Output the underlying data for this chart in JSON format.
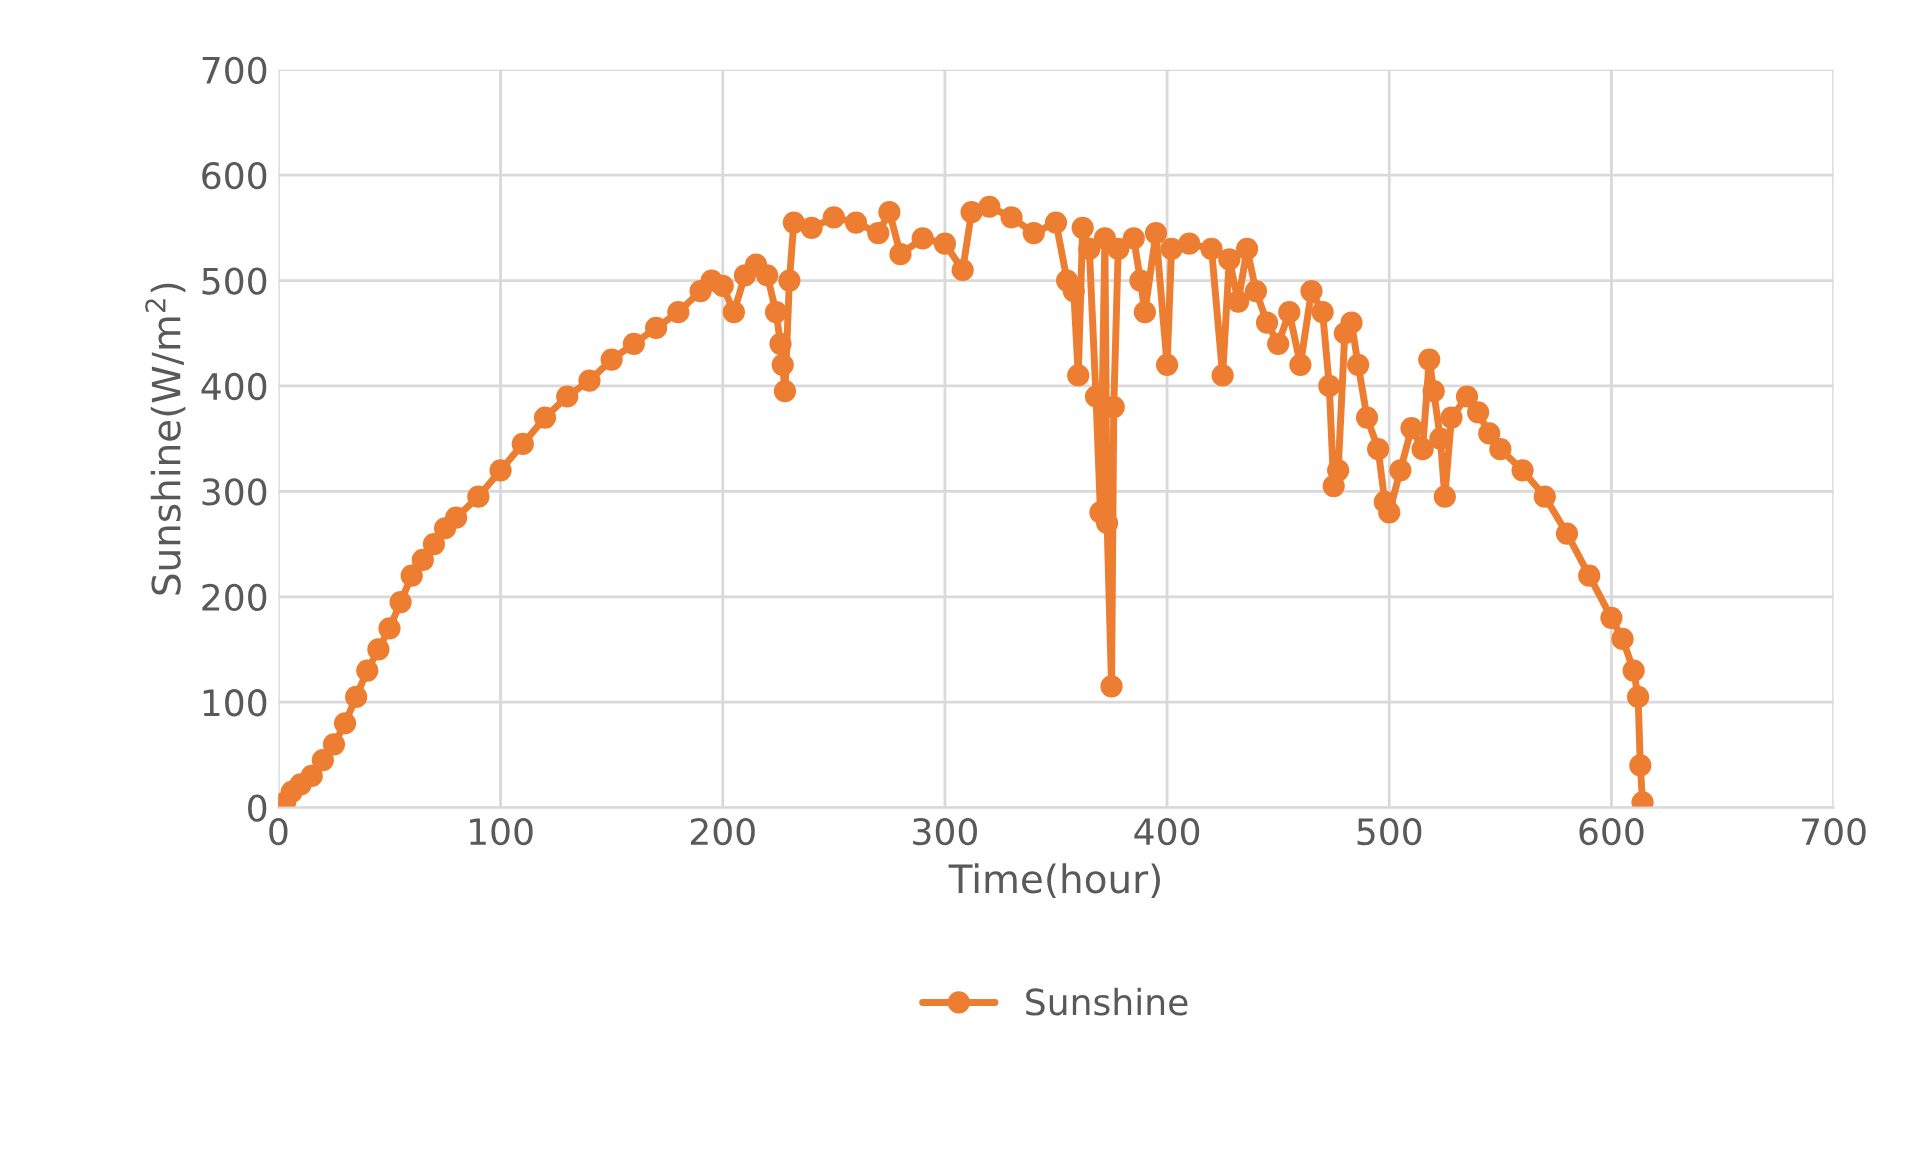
{
  "chart_data": {
    "type": "line",
    "xlabel": "Time(hour)",
    "ylabel": "Sunshine(W/m$^{2}$)",
    "xlim": [
      0,
      700
    ],
    "xticks": [
      0,
      100,
      200,
      300,
      400,
      500,
      600,
      700
    ],
    "ylim": [
      0,
      700
    ],
    "yticks": [
      0,
      100,
      200,
      300,
      400,
      500,
      600,
      700
    ],
    "grid": true,
    "legend": "bottom",
    "marker": "circle",
    "line_style": "solid",
    "series": [
      {
        "name": "Sunshine",
        "color": "#ed7d31",
        "x": [
          0,
          3,
          6,
          10,
          15,
          20,
          25,
          30,
          35,
          40,
          45,
          50,
          55,
          60,
          65,
          70,
          75,
          80,
          90,
          100,
          110,
          120,
          130,
          140,
          150,
          160,
          170,
          180,
          190,
          195,
          200,
          205,
          210,
          215,
          220,
          224,
          226,
          227,
          228,
          230,
          232,
          240,
          250,
          260,
          270,
          275,
          280,
          290,
          300,
          308,
          312,
          320,
          330,
          340,
          350,
          355,
          358,
          360,
          362,
          365,
          368,
          370,
          372,
          373,
          375,
          376,
          378,
          385,
          388,
          390,
          395,
          400,
          402,
          410,
          420,
          425,
          428,
          432,
          436,
          440,
          445,
          450,
          455,
          460,
          465,
          470,
          473,
          475,
          477,
          480,
          483,
          486,
          490,
          495,
          498,
          500,
          505,
          510,
          515,
          518,
          520,
          523,
          525,
          528,
          535,
          540,
          545,
          550,
          560,
          570,
          580,
          590,
          600,
          605,
          610,
          612,
          613,
          614
        ],
        "values": [
          0,
          5,
          15,
          22,
          30,
          45,
          60,
          80,
          105,
          130,
          150,
          170,
          195,
          220,
          235,
          250,
          265,
          275,
          295,
          320,
          345,
          370,
          390,
          405,
          425,
          440,
          455,
          470,
          490,
          500,
          495,
          470,
          505,
          515,
          505,
          470,
          440,
          420,
          395,
          500,
          555,
          550,
          560,
          555,
          545,
          565,
          525,
          540,
          535,
          510,
          565,
          570,
          560,
          545,
          555,
          500,
          490,
          410,
          550,
          530,
          390,
          280,
          540,
          270,
          115,
          380,
          530,
          540,
          500,
          470,
          545,
          420,
          530,
          535,
          530,
          410,
          520,
          480,
          530,
          490,
          460,
          440,
          470,
          420,
          490,
          470,
          400,
          305,
          320,
          450,
          460,
          420,
          370,
          340,
          290,
          280,
          320,
          360,
          340,
          425,
          395,
          350,
          295,
          370,
          390,
          375,
          355,
          340,
          320,
          295,
          260,
          220,
          180,
          160,
          130,
          105,
          40,
          5
        ]
      }
    ]
  }
}
